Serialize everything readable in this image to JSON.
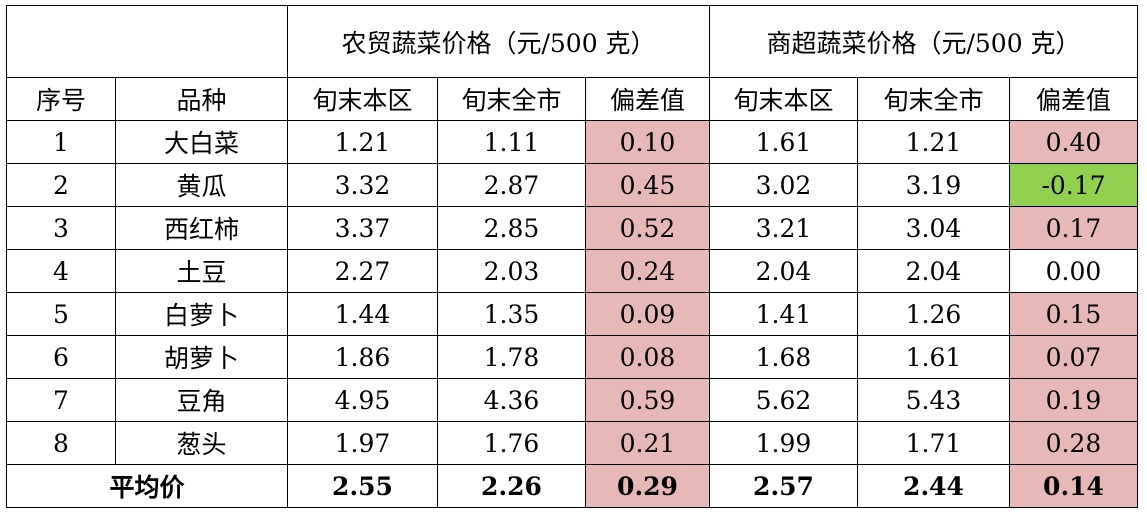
{
  "header": {
    "group_farm": "农贸蔬菜价格（元/500 克）",
    "group_super": "商超蔬菜价格（元/500 克）",
    "columns": [
      "序号",
      "品种",
      "旬末本区",
      "旬末全市",
      "偏差值",
      "旬末本区",
      "旬末全市",
      "偏差值"
    ]
  },
  "rows": [
    {
      "no": "1",
      "name": "大白菜",
      "farm_local": "1.21",
      "farm_city": "1.11",
      "farm_dev": "0.10",
      "super_local": "1.61",
      "super_city": "1.21",
      "super_dev": "0.40"
    },
    {
      "no": "2",
      "name": "黄瓜",
      "farm_local": "3.32",
      "farm_city": "2.87",
      "farm_dev": "0.45",
      "super_local": "3.02",
      "super_city": "3.19",
      "super_dev": "-0.17"
    },
    {
      "no": "3",
      "name": "西红柿",
      "farm_local": "3.37",
      "farm_city": "2.85",
      "farm_dev": "0.52",
      "super_local": "3.21",
      "super_city": "3.04",
      "super_dev": "0.17"
    },
    {
      "no": "4",
      "name": "土豆",
      "farm_local": "2.27",
      "farm_city": "2.03",
      "farm_dev": "0.24",
      "super_local": "2.04",
      "super_city": "2.04",
      "super_dev": "0.00"
    },
    {
      "no": "5",
      "name": "白萝卜",
      "farm_local": "1.44",
      "farm_city": "1.35",
      "farm_dev": "0.09",
      "super_local": "1.41",
      "super_city": "1.26",
      "super_dev": "0.15"
    },
    {
      "no": "6",
      "name": "胡萝卜",
      "farm_local": "1.86",
      "farm_city": "1.78",
      "farm_dev": "0.08",
      "super_local": "1.68",
      "super_city": "1.61",
      "super_dev": "0.07"
    },
    {
      "no": "7",
      "name": "豆角",
      "farm_local": "4.95",
      "farm_city": "4.36",
      "farm_dev": "0.59",
      "super_local": "5.62",
      "super_city": "5.43",
      "super_dev": "0.19"
    },
    {
      "no": "8",
      "name": "葱头",
      "farm_local": "1.97",
      "farm_city": "1.76",
      "farm_dev": "0.21",
      "super_local": "1.99",
      "super_city": "1.71",
      "super_dev": "0.28"
    }
  ],
  "average": {
    "label": "平均价",
    "farm_local": "2.55",
    "farm_city": "2.26",
    "farm_dev": "0.29",
    "super_local": "2.57",
    "super_city": "2.44",
    "super_dev": "0.14"
  },
  "colors": {
    "positive_deviation": "#e6b8b7",
    "negative_deviation": "#92d050",
    "zero_deviation": "#ffffff"
  }
}
